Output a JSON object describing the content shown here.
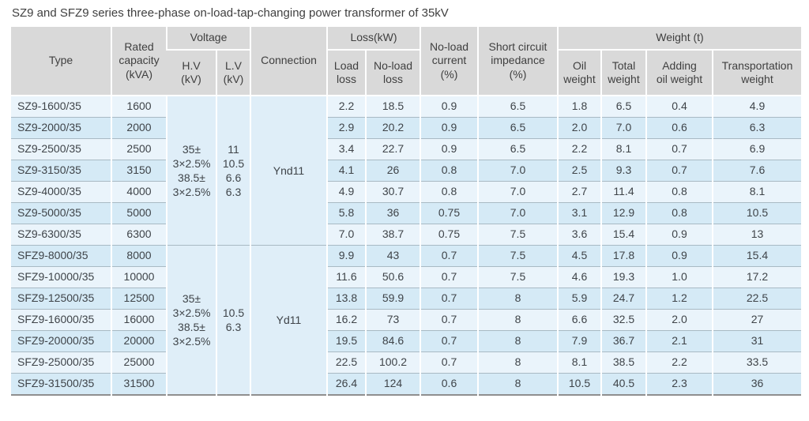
{
  "title": "SZ9 and SFZ9 series three-phase on-load-tap-changing power transformer of 35kV",
  "table": {
    "header": {
      "type": "Type",
      "rated_capacity": "Rated\ncapacity\n(kVA)",
      "voltage_group": "Voltage",
      "hv": "H.V\n(kV)",
      "lv": "L.V\n(kV)",
      "connection": "Connection",
      "loss_group": "Loss(kW)",
      "load_loss": "Load\nloss",
      "no_load_loss": "No-load\nloss",
      "no_load_current": "No-load\ncurrent\n(%)",
      "short_circuit_impedance": "Short circuit\nimpedance\n(%)",
      "weight_group": "Weight (t)",
      "oil_weight": "Oil\nweight",
      "total_weight": "Total\nweight",
      "adding_oil_weight": "Adding\noil weight",
      "transportation_weight": "Transportation\nweight"
    },
    "groups": [
      {
        "row_start": 0,
        "row_count": 7,
        "hv": "35±\n3×2.5%\n38.5±\n3×2.5%",
        "lv": "11\n10.5\n6.6\n6.3",
        "connection": "Ynd11"
      },
      {
        "row_start": 7,
        "row_count": 7,
        "hv": "35±\n3×2.5%\n38.5±\n3×2.5%",
        "lv": "10.5\n6.3",
        "connection": "Yd11"
      }
    ],
    "rows": [
      {
        "type": "SZ9-1600/35",
        "capacity": "1600",
        "load_loss": "2.2",
        "no_load_loss": "18.5",
        "no_load_current": "0.9",
        "impedance": "6.5",
        "oil_weight": "1.8",
        "total_weight": "6.5",
        "adding_oil_weight": "0.4",
        "transport_weight": "4.9"
      },
      {
        "type": "SZ9-2000/35",
        "capacity": "2000",
        "load_loss": "2.9",
        "no_load_loss": "20.2",
        "no_load_current": "0.9",
        "impedance": "6.5",
        "oil_weight": "2.0",
        "total_weight": "7.0",
        "adding_oil_weight": "0.6",
        "transport_weight": "6.3"
      },
      {
        "type": "SZ9-2500/35",
        "capacity": "2500",
        "load_loss": "3.4",
        "no_load_loss": "22.7",
        "no_load_current": "0.9",
        "impedance": "6.5",
        "oil_weight": "2.2",
        "total_weight": "8.1",
        "adding_oil_weight": "0.7",
        "transport_weight": "6.9"
      },
      {
        "type": "SZ9-3150/35",
        "capacity": "3150",
        "load_loss": "4.1",
        "no_load_loss": "26",
        "no_load_current": "0.8",
        "impedance": "7.0",
        "oil_weight": "2.5",
        "total_weight": "9.3",
        "adding_oil_weight": "0.7",
        "transport_weight": "7.6"
      },
      {
        "type": "SZ9-4000/35",
        "capacity": "4000",
        "load_loss": "4.9",
        "no_load_loss": "30.7",
        "no_load_current": "0.8",
        "impedance": "7.0",
        "oil_weight": "2.7",
        "total_weight": "11.4",
        "adding_oil_weight": "0.8",
        "transport_weight": "8.1"
      },
      {
        "type": "SZ9-5000/35",
        "capacity": "5000",
        "load_loss": "5.8",
        "no_load_loss": "36",
        "no_load_current": "0.75",
        "impedance": "7.0",
        "oil_weight": "3.1",
        "total_weight": "12.9",
        "adding_oil_weight": "0.8",
        "transport_weight": "10.5"
      },
      {
        "type": "SZ9-6300/35",
        "capacity": "6300",
        "load_loss": "7.0",
        "no_load_loss": "38.7",
        "no_load_current": "0.75",
        "impedance": "7.5",
        "oil_weight": "3.6",
        "total_weight": "15.4",
        "adding_oil_weight": "0.9",
        "transport_weight": "13"
      },
      {
        "type": "SFZ9-8000/35",
        "capacity": "8000",
        "load_loss": "9.9",
        "no_load_loss": "43",
        "no_load_current": "0.7",
        "impedance": "7.5",
        "oil_weight": "4.5",
        "total_weight": "17.8",
        "adding_oil_weight": "0.9",
        "transport_weight": "15.4"
      },
      {
        "type": "SFZ9-10000/35",
        "capacity": "10000",
        "load_loss": "11.6",
        "no_load_loss": "50.6",
        "no_load_current": "0.7",
        "impedance": "7.5",
        "oil_weight": "4.6",
        "total_weight": "19.3",
        "adding_oil_weight": "1.0",
        "transport_weight": "17.2"
      },
      {
        "type": "SFZ9-12500/35",
        "capacity": "12500",
        "load_loss": "13.8",
        "no_load_loss": "59.9",
        "no_load_current": "0.7",
        "impedance": "8",
        "oil_weight": "5.9",
        "total_weight": "24.7",
        "adding_oil_weight": "1.2",
        "transport_weight": "22.5"
      },
      {
        "type": "SFZ9-16000/35",
        "capacity": "16000",
        "load_loss": "16.2",
        "no_load_loss": "73",
        "no_load_current": "0.7",
        "impedance": "8",
        "oil_weight": "6.6",
        "total_weight": "32.5",
        "adding_oil_weight": "2.0",
        "transport_weight": "27"
      },
      {
        "type": "SFZ9-20000/35",
        "capacity": "20000",
        "load_loss": "19.5",
        "no_load_loss": "84.6",
        "no_load_current": "0.7",
        "impedance": "8",
        "oil_weight": "7.9",
        "total_weight": "36.7",
        "adding_oil_weight": "2.1",
        "transport_weight": "31"
      },
      {
        "type": "SFZ9-25000/35",
        "capacity": "25000",
        "load_loss": "22.5",
        "no_load_loss": "100.2",
        "no_load_current": "0.7",
        "impedance": "8",
        "oil_weight": "8.1",
        "total_weight": "38.5",
        "adding_oil_weight": "2.2",
        "transport_weight": "33.5"
      },
      {
        "type": "SFZ9-31500/35",
        "capacity": "31500",
        "load_loss": "26.4",
        "no_load_loss": "124",
        "no_load_current": "0.6",
        "impedance": "8",
        "oil_weight": "10.5",
        "total_weight": "40.5",
        "adding_oil_weight": "2.3",
        "transport_weight": "36"
      }
    ]
  },
  "colors": {
    "header_bg": "#d9d9d9",
    "row_light": "#eaf4fb",
    "row_dark": "#d5eaf6",
    "merged_bg": "#dfeef8",
    "grid_line": "#a9bac4",
    "text": "#3f3f3f"
  }
}
